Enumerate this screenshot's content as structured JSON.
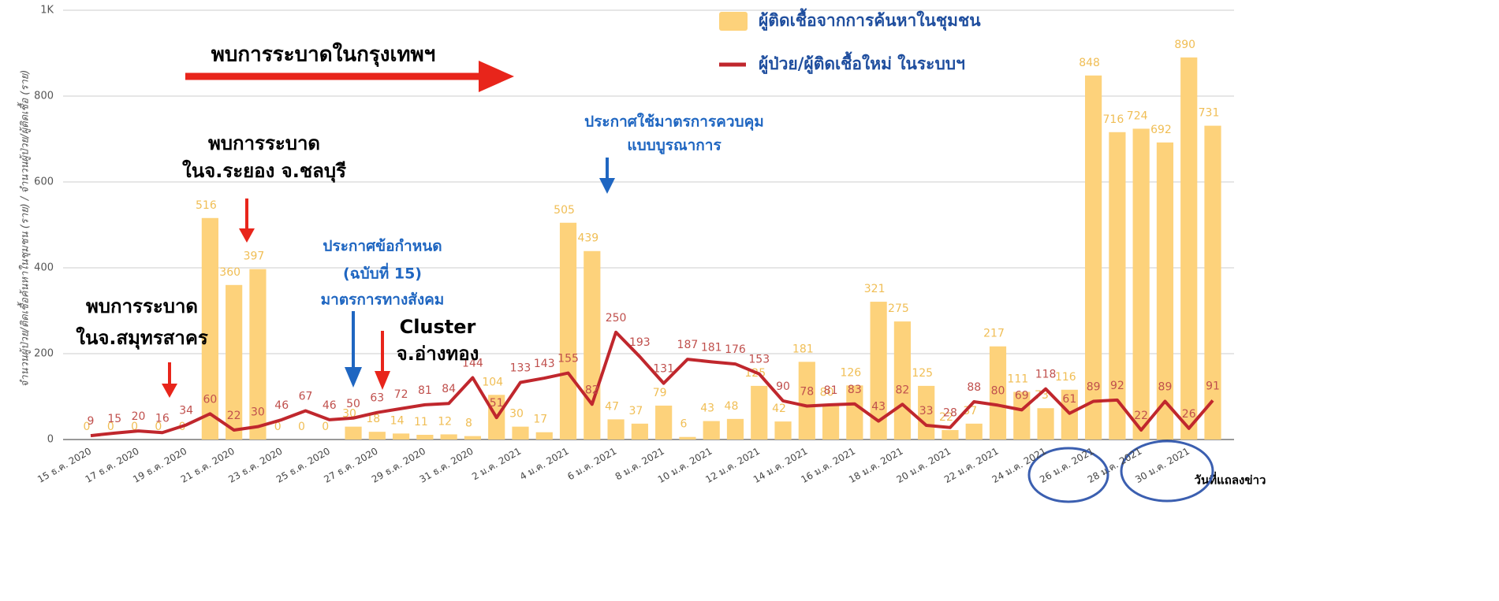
{
  "chart_data": {
    "type": "bar_line",
    "y_axis_label": "จำนวนผู้ป่วย/ติดเชื้อค้นหาในชุมชน (ราย) / จำนวนผู้ป่วย/ผู้ติดเชื้อ (ราย)",
    "x_axis_label": "วันที่แถลงข่าว",
    "categories": [
      "15 ธ.ค. 2020",
      null,
      "17 ธ.ค. 2020",
      null,
      "19 ธ.ค. 2020",
      null,
      "21 ธ.ค. 2020",
      null,
      "23 ธ.ค. 2020",
      null,
      "25 ธ.ค. 2020",
      null,
      "27 ธ.ค. 2020",
      null,
      "29 ธ.ค. 2020",
      null,
      "31 ธ.ค. 2020",
      null,
      "2 ม.ค. 2021",
      null,
      "4 ม.ค. 2021",
      null,
      "6 ม.ค. 2021",
      null,
      "8 ม.ค. 2021",
      null,
      "10 ม.ค. 2021",
      null,
      "12 ม.ค. 2021",
      null,
      "14 ม.ค. 2021",
      null,
      "16 ม.ค. 2021",
      null,
      "18 ม.ค. 2021",
      null,
      "20 ม.ค. 2021",
      null,
      "22 ม.ค. 2021",
      null,
      "24 ม.ค. 2021",
      null,
      "26 ม.ค. 2021",
      null,
      "28 ม.ค. 2021",
      null,
      "30 ม.ค. 2021",
      null
    ],
    "series": [
      {
        "name": "ผู้ติดเชื้อจากการค้นหาในชุมชน",
        "kind": "bar",
        "color": "#fdd27b",
        "values": [
          0,
          0,
          0,
          0,
          0,
          516,
          360,
          397,
          0,
          0,
          0,
          30,
          18,
          14,
          11,
          12,
          8,
          104,
          30,
          17,
          505,
          439,
          47,
          37,
          79,
          6,
          43,
          48,
          125,
          42,
          181,
          80,
          126,
          321,
          275,
          125,
          22,
          37,
          217,
          111,
          73,
          116,
          848,
          716,
          724,
          692,
          890,
          731
        ]
      },
      {
        "name": "ผู้ป่วย/ผู้ติดเชื้อใหม่ ในระบบฯ",
        "kind": "line",
        "color": "#c0272d",
        "values": [
          9,
          15,
          20,
          16,
          34,
          60,
          22,
          30,
          46,
          67,
          46,
          50,
          63,
          72,
          81,
          84,
          144,
          51,
          133,
          143,
          155,
          82,
          250,
          193,
          131,
          187,
          181,
          176,
          153,
          90,
          78,
          81,
          83,
          43,
          82,
          33,
          28,
          88,
          80,
          69,
          118,
          61,
          89,
          92,
          22,
          89,
          26,
          91
        ]
      }
    ],
    "ylim": [
      0,
      1000
    ],
    "yticks": [
      0,
      200,
      400,
      600,
      800,
      {
        "value": 1000,
        "label": "1K"
      }
    ],
    "grid": true,
    "legend": "top-right",
    "annotations": [
      {
        "lines": [
          "พบการระบาดในกรุงเทพฯ"
        ],
        "color": "#000000"
      },
      {
        "lines": [
          "พบการระบาด",
          "ในจ.ระยอง จ.ชลบุรี"
        ],
        "color": "#000000"
      },
      {
        "lines": [
          "พบการระบาด",
          "ในจ.สมุทรสาคร"
        ],
        "color": "#000000"
      },
      {
        "lines": [
          "ประกาศข้อกำหนด",
          "(ฉบับที่ 15)",
          "มาตรการทางสังคม"
        ],
        "color": "#1f66c1"
      },
      {
        "lines": [
          "Cluster",
          "จ.อ่างทอง"
        ],
        "color": "#000000"
      },
      {
        "lines": [
          "ประกาศใช้มาตรการควบคุม",
          "แบบบูรณาการ"
        ],
        "color": "#1f66c1"
      }
    ]
  }
}
